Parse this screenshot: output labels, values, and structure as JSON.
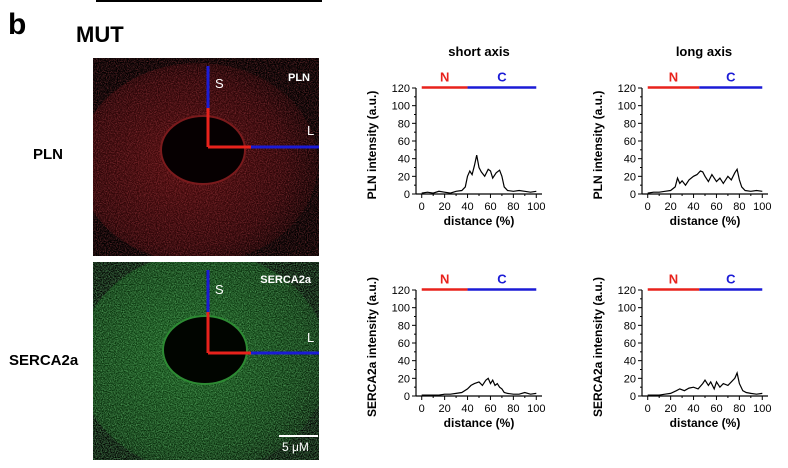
{
  "panel_letter": "b",
  "group_title": "MUT",
  "rows": [
    {
      "label": "PLN",
      "channel_label": "PLN"
    },
    {
      "label": "SERCA2a",
      "channel_label": "SERCA2a"
    }
  ],
  "micrograph_axes": {
    "short": "S",
    "long": "L"
  },
  "scale_bar_label": "5 μM",
  "columns": [
    {
      "title": "short axis"
    },
    {
      "title": "long axis"
    }
  ],
  "colors": {
    "pln_fluor": "#b3262a",
    "serca_fluor": "#2ea83a",
    "N_segment": "#e8221c",
    "C_segment": "#1b1bd6"
  },
  "chart_data": [
    {
      "type": "line",
      "row": 0,
      "column": 0,
      "xlabel": "distance (%)",
      "ylabel": "PLN intensity (a.u.)",
      "xlim": [
        -5,
        105
      ],
      "ylim": [
        0,
        120
      ],
      "xticks": [
        "0",
        "20",
        "40",
        "60",
        "80",
        "100"
      ],
      "yticks": [
        "0",
        "20",
        "40",
        "60",
        "80",
        "100",
        "120"
      ],
      "segments": [
        {
          "label": "N",
          "from": 0,
          "to": 40
        },
        {
          "label": "C",
          "from": 40,
          "to": 100
        }
      ],
      "x": [
        0,
        5,
        10,
        15,
        20,
        25,
        30,
        35,
        38,
        40,
        42,
        44,
        46,
        48,
        50,
        52,
        55,
        58,
        60,
        62,
        65,
        68,
        70,
        72,
        75,
        80,
        85,
        90,
        95,
        100
      ],
      "y": [
        1,
        2,
        1,
        3,
        2,
        1,
        3,
        4,
        8,
        20,
        26,
        22,
        32,
        44,
        30,
        25,
        20,
        28,
        26,
        18,
        24,
        27,
        20,
        8,
        4,
        3,
        4,
        3,
        2,
        3
      ]
    },
    {
      "type": "line",
      "row": 0,
      "column": 1,
      "xlabel": "distance (%)",
      "ylabel": "PLN intensity (a.u.)",
      "xlim": [
        -5,
        105
      ],
      "ylim": [
        0,
        120
      ],
      "xticks": [
        "0",
        "20",
        "40",
        "60",
        "80",
        "100"
      ],
      "yticks": [
        "0",
        "20",
        "40",
        "60",
        "80",
        "100",
        "120"
      ],
      "segments": [
        {
          "label": "N",
          "from": 0,
          "to": 45
        },
        {
          "label": "C",
          "from": 45,
          "to": 100
        }
      ],
      "x": [
        0,
        5,
        10,
        15,
        20,
        24,
        26,
        28,
        30,
        33,
        36,
        40,
        43,
        46,
        48,
        50,
        53,
        56,
        60,
        63,
        66,
        70,
        73,
        76,
        78,
        80,
        82,
        85,
        90,
        95,
        100
      ],
      "y": [
        1,
        2,
        2,
        3,
        4,
        8,
        18,
        12,
        15,
        10,
        16,
        20,
        22,
        26,
        25,
        20,
        14,
        22,
        14,
        18,
        12,
        20,
        16,
        24,
        28,
        16,
        8,
        4,
        3,
        4,
        3
      ]
    },
    {
      "type": "line",
      "row": 1,
      "column": 0,
      "xlabel": "distance (%)",
      "ylabel": "SERCA2a intensity (a.u.)",
      "xlim": [
        -5,
        105
      ],
      "ylim": [
        0,
        120
      ],
      "xticks": [
        "0",
        "20",
        "40",
        "60",
        "80",
        "100"
      ],
      "yticks": [
        "0",
        "20",
        "40",
        "60",
        "80",
        "100",
        "120"
      ],
      "segments": [
        {
          "label": "N",
          "from": 0,
          "to": 40
        },
        {
          "label": "C",
          "from": 40,
          "to": 100
        }
      ],
      "x": [
        0,
        5,
        10,
        15,
        20,
        25,
        30,
        35,
        40,
        43,
        46,
        50,
        53,
        56,
        58,
        60,
        62,
        64,
        66,
        68,
        70,
        72,
        75,
        80,
        85,
        90,
        95,
        100
      ],
      "y": [
        1,
        1,
        1,
        1,
        2,
        2,
        3,
        4,
        8,
        12,
        14,
        16,
        12,
        18,
        20,
        14,
        18,
        12,
        14,
        10,
        8,
        4,
        3,
        2,
        2,
        4,
        2,
        3
      ]
    },
    {
      "type": "line",
      "row": 1,
      "column": 1,
      "xlabel": "distance (%)",
      "ylabel": "SERCA2a intensity (a.u.)",
      "xlim": [
        -5,
        105
      ],
      "ylim": [
        0,
        120
      ],
      "xticks": [
        "0",
        "20",
        "40",
        "60",
        "80",
        "100"
      ],
      "yticks": [
        "0",
        "20",
        "40",
        "60",
        "80",
        "100",
        "120"
      ],
      "segments": [
        {
          "label": "N",
          "from": 0,
          "to": 45
        },
        {
          "label": "C",
          "from": 45,
          "to": 100
        }
      ],
      "x": [
        0,
        5,
        10,
        15,
        20,
        25,
        28,
        32,
        36,
        40,
        44,
        48,
        50,
        53,
        55,
        58,
        60,
        63,
        66,
        70,
        73,
        76,
        78,
        80,
        83,
        86,
        90,
        95,
        100
      ],
      "y": [
        1,
        1,
        1,
        2,
        3,
        6,
        8,
        6,
        9,
        10,
        8,
        14,
        18,
        12,
        16,
        8,
        16,
        10,
        14,
        12,
        16,
        20,
        26,
        14,
        6,
        4,
        3,
        2,
        3
      ]
    }
  ]
}
